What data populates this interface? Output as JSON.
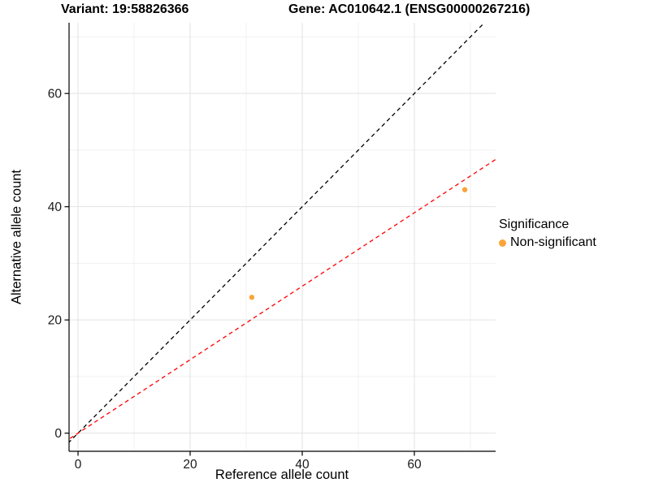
{
  "chart_data": {
    "type": "scatter",
    "title_left": "Variant: 19:58826366",
    "title_right": "Gene: AC010642.1 (ENSG00000267216)",
    "xlabel": "Reference allele count",
    "ylabel": "Alternative allele count",
    "xlim": [
      -1.6,
      74.5
    ],
    "ylim": [
      -3.2,
      72.5
    ],
    "x_ticks": [
      0,
      20,
      40,
      60
    ],
    "y_ticks": [
      0,
      20,
      40,
      60
    ],
    "x_minor_ticks": [
      10,
      30,
      50,
      70
    ],
    "y_minor_ticks": [
      10,
      30,
      50,
      70
    ],
    "grid": true,
    "points": [
      {
        "x": 31,
        "y": 24,
        "series": "Non-significant"
      },
      {
        "x": 69,
        "y": 43,
        "series": "Non-significant"
      }
    ],
    "point_color": "#FAA43A",
    "lines": [
      {
        "name": "identity-line",
        "slope": 1,
        "intercept": 0,
        "color": "#000000",
        "dashed": true
      },
      {
        "name": "fit-line",
        "slope": 0.649,
        "intercept": 0,
        "color": "#FF0000",
        "dashed": true
      }
    ],
    "legend": {
      "title": "Significance",
      "position": "right",
      "items": [
        {
          "label": "Non-significant",
          "color": "#FAA43A"
        }
      ]
    }
  }
}
